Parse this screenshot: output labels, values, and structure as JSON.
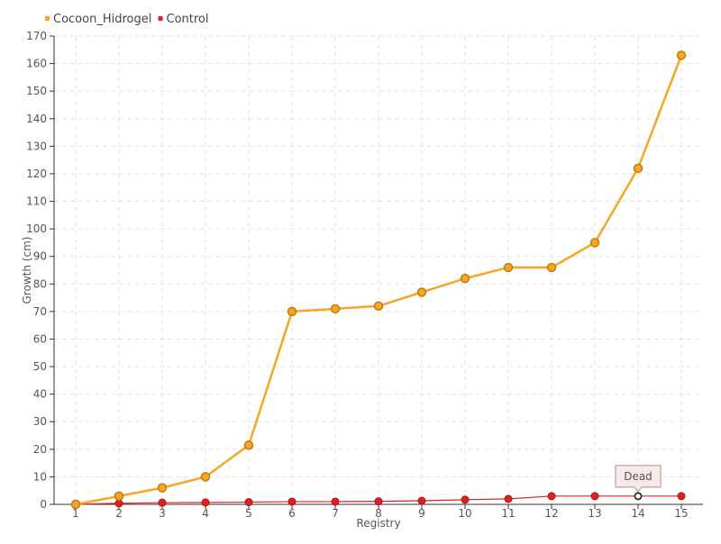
{
  "chart_data": {
    "type": "line",
    "title": "",
    "xlabel": "Registry",
    "ylabel": "Growth (cm)",
    "categories": [
      "1",
      "2",
      "3",
      "4",
      "5",
      "6",
      "7",
      "8",
      "9",
      "10",
      "11",
      "12",
      "13",
      "14",
      "15"
    ],
    "ylim": [
      0,
      170
    ],
    "ytick_step": 10,
    "grid": true,
    "legend_position": "top-left",
    "series": [
      {
        "name": "Cocoon_Hidrogel",
        "color": "#f5a623",
        "values": [
          0,
          3,
          6,
          10,
          21.5,
          70,
          71,
          72,
          77,
          82,
          86,
          86,
          95,
          122,
          163
        ]
      },
      {
        "name": "Control",
        "color": "#e02020",
        "values": [
          0,
          0.4,
          0.6,
          0.7,
          0.8,
          1,
          1,
          1.1,
          1.3,
          1.7,
          2,
          3,
          3,
          3,
          3
        ]
      }
    ],
    "annotations": [
      {
        "text": "Dead",
        "series": "Control",
        "category": "14",
        "value": 3
      }
    ]
  }
}
